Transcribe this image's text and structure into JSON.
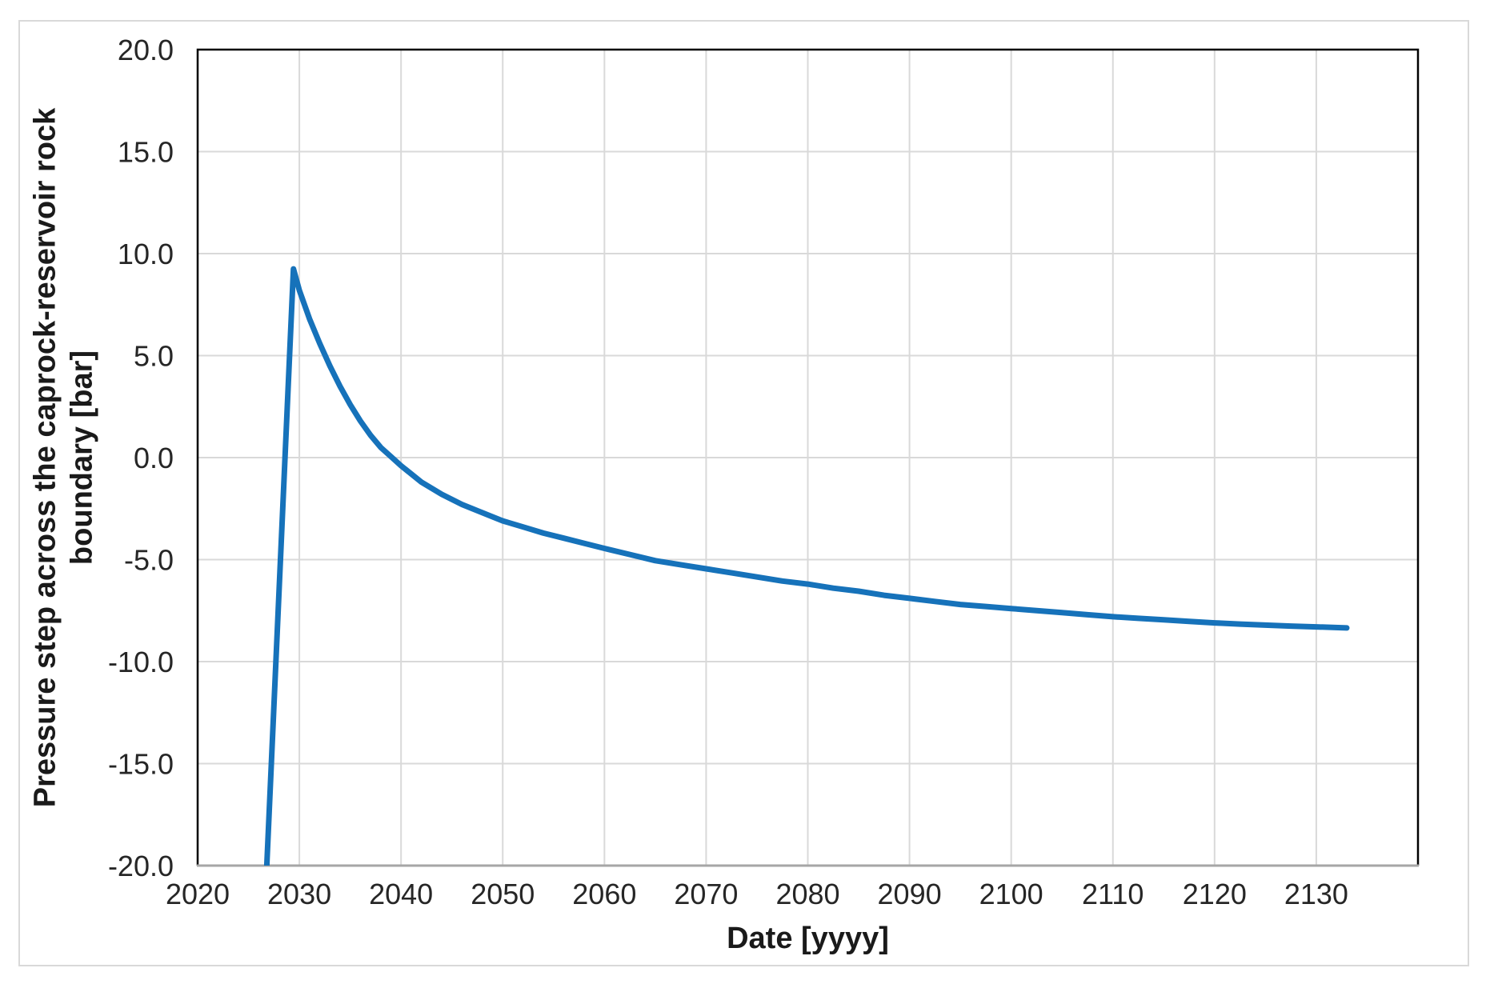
{
  "figure": {
    "background": "#FFFFFF",
    "frame_border_color": "#D9D9D9"
  },
  "chart_data": {
    "type": "line",
    "title": "",
    "xlabel": "Date [yyyy]",
    "ylabel": "Pressure step across the caprock-reservoir rock\nboundary [bar]",
    "xlim": [
      2020,
      2140
    ],
    "ylim": [
      -20,
      20
    ],
    "grid": true,
    "legend": "none",
    "x_tick_values": [
      2020,
      2030,
      2040,
      2050,
      2060,
      2070,
      2080,
      2090,
      2100,
      2110,
      2120,
      2130
    ],
    "x_tick_labels": [
      "2020",
      "2030",
      "2040",
      "2050",
      "2060",
      "2070",
      "2080",
      "2090",
      "2100",
      "2110",
      "2120",
      "2130"
    ],
    "y_tick_values": [
      20,
      15,
      10,
      5,
      0,
      -5,
      -10,
      -15,
      -20
    ],
    "y_tick_labels": [
      "20.0",
      "15.0",
      "10.0",
      "5.0",
      "0.0",
      "-5.0",
      "-10.0",
      "-15.0",
      "-20.0"
    ],
    "colors": {
      "line": "#1672BA",
      "gridline": "#D9D9D9",
      "plot_border": "#000000",
      "x_axis_line": "#A6A6A6",
      "tick_label": "#262626"
    },
    "series": [
      {
        "name": "Pressure step across caprock-reservoir boundary",
        "color": "#1672BA",
        "stroke_width": 7,
        "points": [
          [
            2026.8,
            -20.0
          ],
          [
            2029.42,
            9.25
          ],
          [
            2030,
            8.2
          ],
          [
            2031,
            6.8
          ],
          [
            2032,
            5.6
          ],
          [
            2033,
            4.5
          ],
          [
            2034,
            3.5
          ],
          [
            2035,
            2.6
          ],
          [
            2036,
            1.8
          ],
          [
            2037,
            1.1
          ],
          [
            2038,
            0.5
          ],
          [
            2039,
            0.05
          ],
          [
            2040,
            -0.4
          ],
          [
            2041,
            -0.8
          ],
          [
            2042,
            -1.2
          ],
          [
            2043,
            -1.5
          ],
          [
            2044,
            -1.8
          ],
          [
            2045,
            -2.05
          ],
          [
            2046,
            -2.3
          ],
          [
            2047,
            -2.5
          ],
          [
            2048,
            -2.7
          ],
          [
            2049,
            -2.9
          ],
          [
            2050,
            -3.1
          ],
          [
            2052,
            -3.4
          ],
          [
            2054,
            -3.7
          ],
          [
            2056,
            -3.95
          ],
          [
            2058,
            -4.2
          ],
          [
            2060,
            -4.45
          ],
          [
            2062.5,
            -4.75
          ],
          [
            2065,
            -5.05
          ],
          [
            2067.5,
            -5.25
          ],
          [
            2070,
            -5.45
          ],
          [
            2072.5,
            -5.65
          ],
          [
            2075,
            -5.85
          ],
          [
            2077.5,
            -6.05
          ],
          [
            2080,
            -6.2
          ],
          [
            2082.5,
            -6.4
          ],
          [
            2085,
            -6.55
          ],
          [
            2087.5,
            -6.75
          ],
          [
            2090,
            -6.9
          ],
          [
            2092.5,
            -7.05
          ],
          [
            2095,
            -7.2
          ],
          [
            2097.5,
            -7.3
          ],
          [
            2100,
            -7.4
          ],
          [
            2102.5,
            -7.5
          ],
          [
            2105,
            -7.6
          ],
          [
            2107.5,
            -7.7
          ],
          [
            2110,
            -7.8
          ],
          [
            2112.5,
            -7.88
          ],
          [
            2115,
            -7.95
          ],
          [
            2117.5,
            -8.03
          ],
          [
            2120,
            -8.1
          ],
          [
            2122.5,
            -8.16
          ],
          [
            2125,
            -8.21
          ],
          [
            2127.5,
            -8.26
          ],
          [
            2130,
            -8.3
          ],
          [
            2133,
            -8.35
          ]
        ]
      }
    ]
  }
}
